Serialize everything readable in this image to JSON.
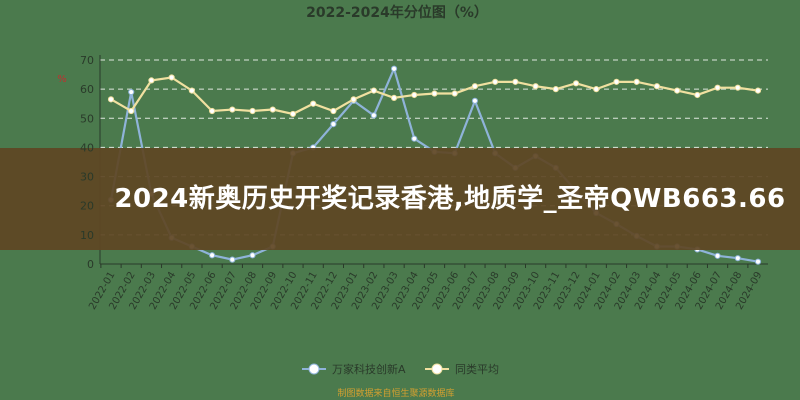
{
  "chart_data": {
    "type": "line",
    "title": "2022-2024年分位图（%）",
    "ylabel": "%",
    "ylim": [
      0,
      70
    ],
    "yticks": [
      0,
      10,
      20,
      30,
      40,
      50,
      60,
      70
    ],
    "grid": true,
    "legend_position": "bottom",
    "categories": [
      "2022-01",
      "2022-02",
      "2022-03",
      "2022-04",
      "2022-05",
      "2022-06",
      "2022-07",
      "2022-08",
      "2022-09",
      "2022-10",
      "2022-11",
      "2022-12",
      "2023-01",
      "2023-02",
      "2023-03",
      "2023-04",
      "2023-05",
      "2023-06",
      "2023-07",
      "2023-08",
      "2023-09",
      "2023-10",
      "2023-11",
      "2023-12",
      "2024-01",
      "2024-02",
      "2024-03",
      "2024-04",
      "2024-05",
      "2024-06",
      "2024-07",
      "2024-08",
      "2024-09"
    ],
    "series": [
      {
        "name": "万家科技创新A",
        "color": "#8fb3d9",
        "values": [
          22,
          59,
          24,
          9,
          6,
          3,
          1.5,
          3,
          6,
          38,
          40,
          48,
          56,
          51,
          67,
          43,
          38.5,
          38,
          56,
          38,
          33,
          37,
          33,
          25,
          17.5,
          13.7,
          9.6,
          6,
          6,
          5,
          2.8,
          2,
          0.8
        ]
      },
      {
        "name": "同类平均",
        "color": "#f0e0a0",
        "values": [
          56.5,
          52.5,
          63,
          64,
          59.5,
          52.5,
          53,
          52.5,
          53,
          51.5,
          55,
          52.5,
          56.5,
          59.5,
          57,
          58,
          58.5,
          58.5,
          61,
          62.5,
          62.5,
          61,
          60,
          62,
          60,
          62.5,
          62.5,
          61,
          59.5,
          58,
          60.5,
          60.5,
          59.5
        ]
      }
    ]
  },
  "source_note": "制图数据来自恒生聚源数据库",
  "banner": {
    "text": "2024新奥历史开奖记录香港,地质学_圣帝QWB663.66"
  },
  "colors": {
    "background": "#4b7a4d",
    "banner": "#5f4623",
    "axis_text": "#2a3a2a"
  }
}
